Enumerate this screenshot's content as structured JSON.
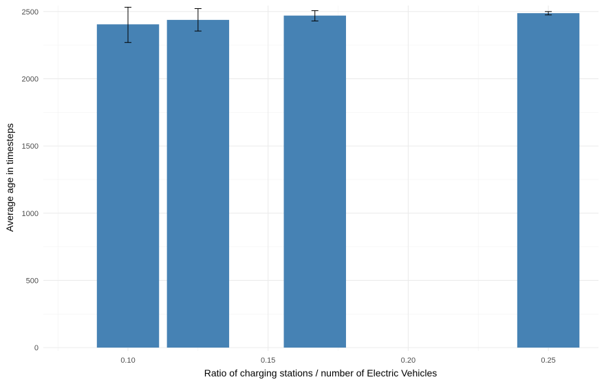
{
  "chart_data": {
    "type": "bar",
    "title": "",
    "xlabel": "Ratio of charging stations / number of Electric Vehicles",
    "ylabel": "Average age in timesteps",
    "x": [
      0.1,
      0.125,
      0.1667,
      0.25
    ],
    "values": [
      2405,
      2438,
      2470,
      2488
    ],
    "error_low": [
      2270,
      2355,
      2430,
      2475
    ],
    "error_high": [
      2532,
      2522,
      2507,
      2500
    ],
    "bar_width": 0.0222,
    "xlim": [
      0.0698,
      0.2679
    ],
    "ylim": [
      -25,
      2545
    ],
    "x_ticks": [
      0.1,
      0.15,
      0.2,
      0.25
    ],
    "x_tick_labels": [
      "0.10",
      "0.15",
      "0.20",
      "0.25"
    ],
    "y_ticks": [
      0,
      500,
      1000,
      1500,
      2000,
      2500
    ],
    "y_tick_labels": [
      "0",
      "500",
      "1000",
      "1500",
      "2000",
      "2500"
    ],
    "grid": true,
    "legend": "none",
    "colors": {
      "bar": "#4682b4",
      "error_bar": "#000000",
      "grid": "#ebebeb",
      "background": "#ffffff"
    }
  }
}
